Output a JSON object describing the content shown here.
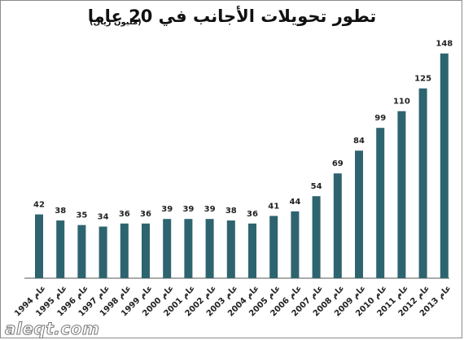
{
  "chart_data": {
    "type": "bar",
    "title": "تطور تحويلات الأجانب في 20 عاما",
    "subtitle": "(مليون ريال)",
    "categories": [
      "عام 1994",
      "عام 1995",
      "عام 1996",
      "عام 1997",
      "عام 1998",
      "عام 1999",
      "عام 2000",
      "عام 2001",
      "عام 2002",
      "عام 2003",
      "عام 2004",
      "عام 2005",
      "عام 2006",
      "عام 2007",
      "عام 2008",
      "عام 2009",
      "عام 2010",
      "عام 2011",
      "عام 2012",
      "عام 2013"
    ],
    "values": [
      42,
      38,
      35,
      34,
      36,
      36,
      39,
      39,
      39,
      38,
      36,
      41,
      44,
      54,
      69,
      84,
      99,
      110,
      125,
      148
    ],
    "ylim": [
      0,
      150
    ],
    "grid": false,
    "legend": "none",
    "bar_color": "#2e6470",
    "axis_color": "#555555"
  },
  "watermark": "aleqt.com"
}
